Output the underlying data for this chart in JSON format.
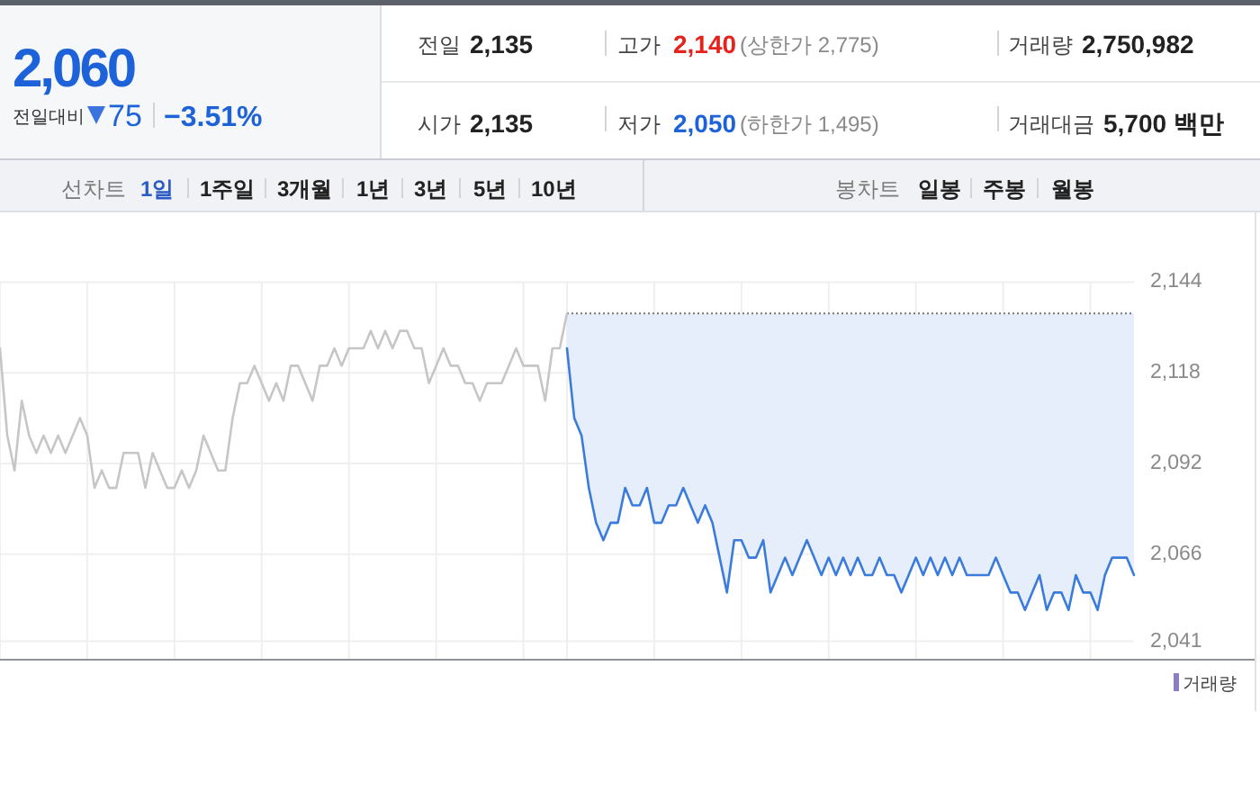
{
  "chart_data": [
    {
      "type": "other",
      "annotations": [
        "2,060",
        "전일대비",
        "75",
        "−3.51%",
        "전일",
        "2,135",
        "고가",
        "2,140",
        "(상한가 2,775)",
        "거래량",
        "2,750,982",
        "시가",
        "2,135",
        "저가",
        "2,050",
        "(하한가 1,495)",
        "거래대금",
        "5,700 백만"
      ]
    },
    {
      "type": "other",
      "annotations": [
        "선차트",
        "1일",
        "1주일",
        "3개월",
        "1년",
        "3년",
        "5년",
        "10년",
        "봉차트",
        "일봉",
        "주봉",
        "월봉"
      ]
    },
    {
      "type": "line",
      "categories": [
        null,
        null,
        null,
        null,
        null,
        null,
        null,
        null,
        null,
        null,
        null,
        null,
        null,
        null,
        null,
        null,
        null,
        null,
        null,
        null,
        null,
        null,
        null,
        null,
        null,
        null,
        null,
        null,
        null,
        null,
        null,
        null,
        null,
        null,
        null,
        null,
        null,
        null,
        null,
        null,
        null,
        null,
        null,
        null,
        null,
        null,
        null,
        null,
        null,
        null,
        null,
        null,
        null,
        null,
        null,
        null,
        null,
        null,
        null,
        null,
        null,
        null,
        null,
        null,
        null,
        null,
        null,
        null,
        null,
        null,
        null,
        null,
        null,
        null,
        null,
        null,
        null,
        null,
        null,
        null,
        null,
        null,
        null,
        null,
        null,
        null,
        null,
        null,
        null,
        null,
        null,
        null,
        null,
        null,
        null,
        null,
        null,
        null,
        null,
        null,
        null,
        null,
        null,
        null,
        null,
        null,
        null,
        null,
        null,
        null,
        null,
        null,
        null,
        null,
        null,
        null,
        null,
        null,
        null,
        null,
        null,
        null,
        null,
        null,
        null,
        null,
        null,
        null,
        null,
        null,
        null,
        null,
        null,
        null,
        null,
        null,
        null,
        null,
        null,
        null,
        null,
        null,
        null,
        null,
        null,
        null,
        null,
        null,
        null,
        null,
        null,
        null,
        null,
        null,
        null,
        null,
        null
      ],
      "series": [
        {
          "color": "#c6c6c6",
          "values": [
            2125,
            2100,
            2090,
            2110,
            2100,
            2095,
            2100,
            2095,
            2100,
            2095,
            2100,
            2105,
            2100,
            2085,
            2090,
            2085,
            2085,
            2095,
            2095,
            2095,
            2085,
            2095,
            2090,
            2085,
            2085,
            2090,
            2085,
            2090,
            2100,
            2095,
            2090,
            2090,
            2105,
            2115,
            2115,
            2120,
            2115,
            2110,
            2115,
            2110,
            2120,
            2120,
            2115,
            2110,
            2120,
            2120,
            2125,
            2120,
            2125,
            2125,
            2125,
            2130,
            2125,
            2130,
            2125,
            2130,
            2130,
            2125,
            2125,
            2115,
            2120,
            2125,
            2120,
            2120,
            2115,
            2115,
            2110,
            2115,
            2115,
            2115,
            2120,
            2125,
            2120,
            2120,
            2120,
            2110,
            2125,
            2125,
            2135,
            null,
            null,
            null,
            null,
            null,
            null,
            null,
            null,
            null,
            null,
            null,
            null,
            null,
            null,
            null,
            null,
            null,
            null,
            null,
            null,
            null,
            null,
            null,
            null,
            null,
            null,
            null,
            null,
            null,
            null,
            null,
            null,
            null,
            null,
            null,
            null,
            null,
            null,
            null,
            null,
            null,
            null,
            null,
            null,
            null,
            null,
            null,
            null,
            null,
            null,
            null,
            null,
            null,
            null,
            null,
            null,
            null,
            null,
            null,
            null,
            null,
            null,
            null,
            null,
            null,
            null,
            null,
            null,
            null,
            null,
            null,
            null,
            null,
            null,
            null,
            null,
            null,
            null
          ]
        },
        {
          "color": "#3a7bdc",
          "values": [
            null,
            null,
            null,
            null,
            null,
            null,
            null,
            null,
            null,
            null,
            null,
            null,
            null,
            null,
            null,
            null,
            null,
            null,
            null,
            null,
            null,
            null,
            null,
            null,
            null,
            null,
            null,
            null,
            null,
            null,
            null,
            null,
            null,
            null,
            null,
            null,
            null,
            null,
            null,
            null,
            null,
            null,
            null,
            null,
            null,
            null,
            null,
            null,
            null,
            null,
            null,
            null,
            null,
            null,
            null,
            null,
            null,
            null,
            null,
            null,
            null,
            null,
            null,
            null,
            null,
            null,
            null,
            null,
            null,
            null,
            null,
            null,
            null,
            null,
            null,
            null,
            null,
            null,
            2125,
            2105,
            2100,
            2085,
            2075,
            2070,
            2075,
            2075,
            2085,
            2080,
            2080,
            2085,
            2075,
            2075,
            2080,
            2080,
            2085,
            2080,
            2075,
            2080,
            2075,
            2065,
            2055,
            2070,
            2070,
            2065,
            2065,
            2070,
            2055,
            2060,
            2065,
            2060,
            2065,
            2070,
            2065,
            2060,
            2065,
            2060,
            2065,
            2060,
            2065,
            2060,
            2060,
            2065,
            2060,
            2060,
            2055,
            2060,
            2065,
            2060,
            2065,
            2060,
            2065,
            2060,
            2065,
            2060,
            2060,
            2060,
            2060,
            2065,
            2060,
            2055,
            2055,
            2050,
            2055,
            2060,
            2050,
            2055,
            2055,
            2050,
            2060,
            2055,
            2055,
            2050,
            2060,
            2065,
            2065,
            2065,
            2060
          ],
          "lower": [
            null,
            null,
            null,
            null,
            null,
            null,
            null,
            null,
            null,
            null,
            null,
            null,
            null,
            null,
            null,
            null,
            null,
            null,
            null,
            null,
            null,
            null,
            null,
            null,
            null,
            null,
            null,
            null,
            null,
            null,
            null,
            null,
            null,
            null,
            null,
            null,
            null,
            null,
            null,
            null,
            null,
            null,
            null,
            null,
            null,
            null,
            null,
            null,
            null,
            null,
            null,
            null,
            null,
            null,
            null,
            null,
            null,
            null,
            null,
            null,
            null,
            null,
            null,
            null,
            null,
            null,
            null,
            null,
            null,
            null,
            null,
            null,
            null,
            null,
            null,
            null,
            null,
            null,
            2125,
            2105,
            2100,
            2085,
            2075,
            2070,
            2075,
            2075,
            2085,
            2080,
            2080,
            2085,
            2075,
            2075,
            2080,
            2080,
            2085,
            2080,
            2075,
            2080,
            2075,
            2065,
            2055,
            2070,
            2070,
            2065,
            2065,
            2070,
            2055,
            2060,
            2065,
            2060,
            2065,
            2070,
            2065,
            2060,
            2065,
            2060,
            2065,
            2060,
            2065,
            2060,
            2060,
            2065,
            2060,
            2060,
            2055,
            2060,
            2065,
            2060,
            2065,
            2060,
            2065,
            2060,
            2065,
            2060,
            2060,
            2060,
            2060,
            2065,
            2060,
            2055,
            2055,
            2050,
            2055,
            2060,
            2050,
            2055,
            2055,
            2050,
            2060,
            2055,
            2055,
            2050,
            2060,
            2065,
            2065,
            2065,
            2060
          ],
          "upper": [
            null,
            null,
            null,
            null,
            null,
            null,
            null,
            null,
            null,
            null,
            null,
            null,
            null,
            null,
            null,
            null,
            null,
            null,
            null,
            null,
            null,
            null,
            null,
            null,
            null,
            null,
            null,
            null,
            null,
            null,
            null,
            null,
            null,
            null,
            null,
            null,
            null,
            null,
            null,
            null,
            null,
            null,
            null,
            null,
            null,
            null,
            null,
            null,
            null,
            null,
            null,
            null,
            null,
            null,
            null,
            null,
            null,
            null,
            null,
            null,
            null,
            null,
            null,
            null,
            null,
            null,
            null,
            null,
            null,
            null,
            null,
            null,
            null,
            null,
            null,
            null,
            null,
            null,
            2135,
            2135,
            2135,
            2135,
            2135,
            2135,
            2135,
            2135,
            2135,
            2135,
            2135,
            2135,
            2135,
            2135,
            2135,
            2135,
            2135,
            2135,
            2135,
            2135,
            2135,
            2135,
            2135,
            2135,
            2135,
            2135,
            2135,
            2135,
            2135,
            2135,
            2135,
            2135,
            2135,
            2135,
            2135,
            2135,
            2135,
            2135,
            2135,
            2135,
            2135,
            2135,
            2135,
            2135,
            2135,
            2135,
            2135,
            2135,
            2135,
            2135,
            2135,
            2135,
            2135,
            2135,
            2135,
            2135,
            2135,
            2135,
            2135,
            2135,
            2135,
            2135,
            2135,
            2135,
            2135,
            2135,
            2135,
            2135,
            2135,
            2135,
            2135,
            2135,
            2135,
            2135,
            2135,
            2135,
            2135,
            2135,
            2135
          ]
        }
      ],
      "ylim": [
        2036,
        2144
      ],
      "yticks": [
        {
          "value": 2041,
          "label": "2,041"
        },
        {
          "value": 2066,
          "label": "2,066"
        },
        {
          "value": 2092,
          "label": "2,092"
        },
        {
          "value": 2118,
          "label": "2,118"
        },
        {
          "value": 2144,
          "label": "2,144"
        }
      ],
      "grid": true,
      "tick_labels": "y",
      "ref_lines": [
        {
          "axis": "y",
          "value": 2135,
          "line_style": "dotted",
          "color": "#777777"
        }
      ],
      "annotations": [
        "거래량"
      ]
    }
  ]
}
